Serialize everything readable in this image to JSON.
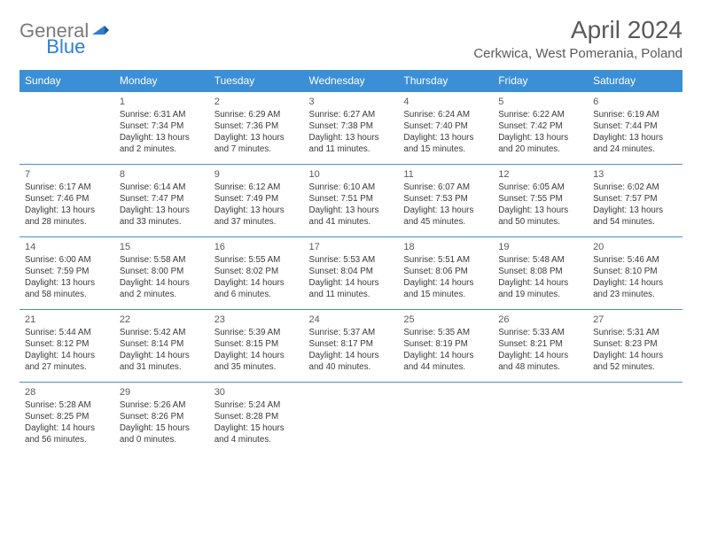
{
  "logo": {
    "general": "General",
    "blue": "Blue"
  },
  "title": "April 2024",
  "location": "Cerkwica, West Pomerania, Poland",
  "colors": {
    "header_bg": "#3b8fd6",
    "header_text": "#ffffff",
    "row_border": "#4a90c8",
    "logo_blue": "#2f7fce",
    "logo_gray": "#7a7a7a",
    "text": "#3a3a3a",
    "bg": "#ffffff"
  },
  "days": [
    "Sunday",
    "Monday",
    "Tuesday",
    "Wednesday",
    "Thursday",
    "Friday",
    "Saturday"
  ],
  "weeks": [
    [
      null,
      {
        "n": "1",
        "sr": "6:31 AM",
        "ss": "7:34 PM",
        "dl": "13 hours and 2 minutes."
      },
      {
        "n": "2",
        "sr": "6:29 AM",
        "ss": "7:36 PM",
        "dl": "13 hours and 7 minutes."
      },
      {
        "n": "3",
        "sr": "6:27 AM",
        "ss": "7:38 PM",
        "dl": "13 hours and 11 minutes."
      },
      {
        "n": "4",
        "sr": "6:24 AM",
        "ss": "7:40 PM",
        "dl": "13 hours and 15 minutes."
      },
      {
        "n": "5",
        "sr": "6:22 AM",
        "ss": "7:42 PM",
        "dl": "13 hours and 20 minutes."
      },
      {
        "n": "6",
        "sr": "6:19 AM",
        "ss": "7:44 PM",
        "dl": "13 hours and 24 minutes."
      }
    ],
    [
      {
        "n": "7",
        "sr": "6:17 AM",
        "ss": "7:46 PM",
        "dl": "13 hours and 28 minutes."
      },
      {
        "n": "8",
        "sr": "6:14 AM",
        "ss": "7:47 PM",
        "dl": "13 hours and 33 minutes."
      },
      {
        "n": "9",
        "sr": "6:12 AM",
        "ss": "7:49 PM",
        "dl": "13 hours and 37 minutes."
      },
      {
        "n": "10",
        "sr": "6:10 AM",
        "ss": "7:51 PM",
        "dl": "13 hours and 41 minutes."
      },
      {
        "n": "11",
        "sr": "6:07 AM",
        "ss": "7:53 PM",
        "dl": "13 hours and 45 minutes."
      },
      {
        "n": "12",
        "sr": "6:05 AM",
        "ss": "7:55 PM",
        "dl": "13 hours and 50 minutes."
      },
      {
        "n": "13",
        "sr": "6:02 AM",
        "ss": "7:57 PM",
        "dl": "13 hours and 54 minutes."
      }
    ],
    [
      {
        "n": "14",
        "sr": "6:00 AM",
        "ss": "7:59 PM",
        "dl": "13 hours and 58 minutes."
      },
      {
        "n": "15",
        "sr": "5:58 AM",
        "ss": "8:00 PM",
        "dl": "14 hours and 2 minutes."
      },
      {
        "n": "16",
        "sr": "5:55 AM",
        "ss": "8:02 PM",
        "dl": "14 hours and 6 minutes."
      },
      {
        "n": "17",
        "sr": "5:53 AM",
        "ss": "8:04 PM",
        "dl": "14 hours and 11 minutes."
      },
      {
        "n": "18",
        "sr": "5:51 AM",
        "ss": "8:06 PM",
        "dl": "14 hours and 15 minutes."
      },
      {
        "n": "19",
        "sr": "5:48 AM",
        "ss": "8:08 PM",
        "dl": "14 hours and 19 minutes."
      },
      {
        "n": "20",
        "sr": "5:46 AM",
        "ss": "8:10 PM",
        "dl": "14 hours and 23 minutes."
      }
    ],
    [
      {
        "n": "21",
        "sr": "5:44 AM",
        "ss": "8:12 PM",
        "dl": "14 hours and 27 minutes."
      },
      {
        "n": "22",
        "sr": "5:42 AM",
        "ss": "8:14 PM",
        "dl": "14 hours and 31 minutes."
      },
      {
        "n": "23",
        "sr": "5:39 AM",
        "ss": "8:15 PM",
        "dl": "14 hours and 35 minutes."
      },
      {
        "n": "24",
        "sr": "5:37 AM",
        "ss": "8:17 PM",
        "dl": "14 hours and 40 minutes."
      },
      {
        "n": "25",
        "sr": "5:35 AM",
        "ss": "8:19 PM",
        "dl": "14 hours and 44 minutes."
      },
      {
        "n": "26",
        "sr": "5:33 AM",
        "ss": "8:21 PM",
        "dl": "14 hours and 48 minutes."
      },
      {
        "n": "27",
        "sr": "5:31 AM",
        "ss": "8:23 PM",
        "dl": "14 hours and 52 minutes."
      }
    ],
    [
      {
        "n": "28",
        "sr": "5:28 AM",
        "ss": "8:25 PM",
        "dl": "14 hours and 56 minutes."
      },
      {
        "n": "29",
        "sr": "5:26 AM",
        "ss": "8:26 PM",
        "dl": "15 hours and 0 minutes."
      },
      {
        "n": "30",
        "sr": "5:24 AM",
        "ss": "8:28 PM",
        "dl": "15 hours and 4 minutes."
      },
      null,
      null,
      null,
      null
    ]
  ],
  "labels": {
    "sunrise": "Sunrise:",
    "sunset": "Sunset:",
    "daylight": "Daylight:"
  }
}
